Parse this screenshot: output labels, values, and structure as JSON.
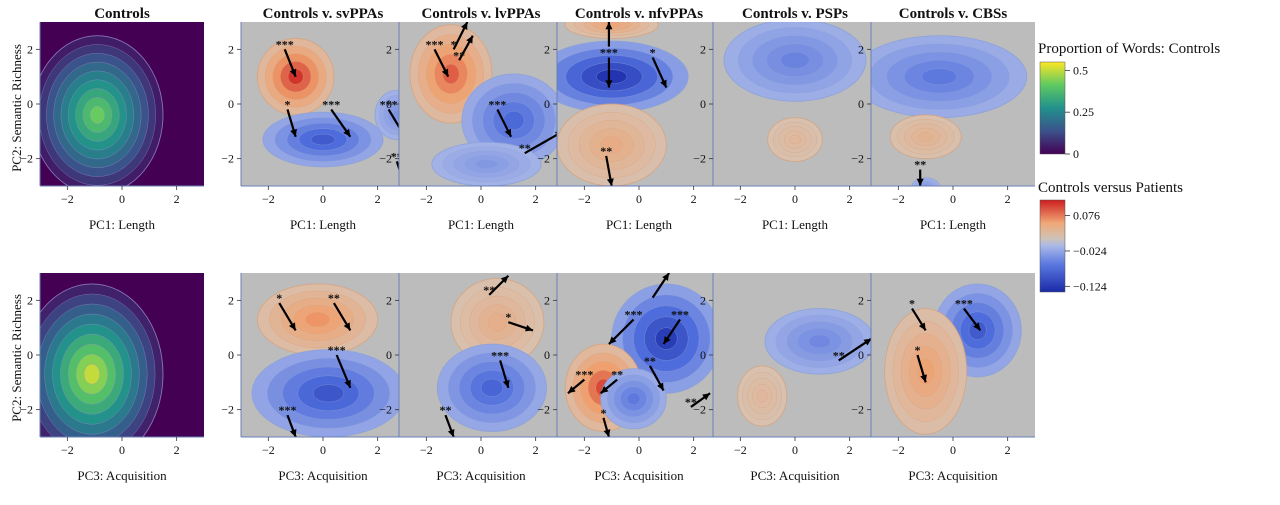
{
  "chart_data": {
    "type": "contour-grid",
    "column_titles": [
      "Controls",
      "Controls v. svPPAs",
      "Controls v. lvPPAs",
      "Controls v. nfvPPAs",
      "Controls v. PSPs",
      "Controls v. CBSs"
    ],
    "row_xlabels": [
      "PC1: Length",
      "PC3: Acquisition"
    ],
    "ylabel": "PC2: Semantic Richness",
    "xlim": [
      -3,
      3
    ],
    "ylim": [
      -3,
      3
    ],
    "xticks": [
      "−2",
      "0",
      "2"
    ],
    "yticks": [
      "2",
      "0",
      "−2"
    ],
    "legend_controls": {
      "title": "Proportion of Words: Controls",
      "ticks": [
        "0.5",
        "0.25",
        "0"
      ],
      "tick_values": [
        0.5,
        0.25,
        0
      ],
      "range": [
        0,
        0.55
      ]
    },
    "legend_diff": {
      "title": "Controls versus Patients",
      "ticks": [
        "0.076",
        "−0.024",
        "−0.124"
      ],
      "tick_values": [
        0.076,
        -0.024,
        -0.124
      ],
      "range": [
        -0.14,
        0.12
      ]
    },
    "panels": [
      [
        {
          "kind": "density",
          "blobs": [
            {
              "cx": -0.9,
              "cy": -0.4,
              "rx": 2.4,
              "ry": 2.9,
              "peak": 0.42
            }
          ]
        },
        {
          "kind": "diff",
          "blobs": [
            {
              "cx": -1.0,
              "cy": 1.0,
              "rx": 1.4,
              "ry": 1.4,
              "peak": 0.11
            },
            {
              "cx": 0.0,
              "cy": -1.3,
              "rx": 2.2,
              "ry": 1.0,
              "peak": -0.09
            },
            {
              "cx": 2.7,
              "cy": -0.4,
              "rx": 0.8,
              "ry": 0.9,
              "peak": -0.035
            }
          ],
          "arrows": [
            {
              "x1": -1.4,
              "y1": 2.0,
              "x2": -1.0,
              "y2": 1.0,
              "label": "***"
            },
            {
              "x1": -1.3,
              "y1": -0.2,
              "x2": -1.0,
              "y2": -1.2,
              "label": "*"
            },
            {
              "x1": 0.3,
              "y1": -0.2,
              "x2": 1.0,
              "y2": -1.2,
              "label": "***"
            },
            {
              "x1": 2.4,
              "y1": -0.2,
              "x2": 3.0,
              "y2": -1.2,
              "label": "***"
            },
            {
              "x1": 2.7,
              "y1": -2.1,
              "x2": 3.0,
              "y2": -3.0,
              "label": "**"
            }
          ]
        },
        {
          "kind": "diff",
          "blobs": [
            {
              "cx": -1.1,
              "cy": 1.1,
              "rx": 1.5,
              "ry": 1.8,
              "peak": 0.09
            },
            {
              "cx": 1.2,
              "cy": -0.6,
              "rx": 1.9,
              "ry": 1.7,
              "peak": -0.075
            },
            {
              "cx": 0.2,
              "cy": -2.2,
              "rx": 2.0,
              "ry": 0.8,
              "peak": -0.03
            }
          ],
          "arrows": [
            {
              "x1": -1.7,
              "y1": 2.0,
              "x2": -1.2,
              "y2": 1.0,
              "label": "***"
            },
            {
              "x1": -1.0,
              "y1": 2.0,
              "x2": -0.5,
              "y2": 3.0,
              "label": "*"
            },
            {
              "x1": -0.8,
              "y1": 1.6,
              "x2": -0.3,
              "y2": 2.5,
              "label": "**"
            },
            {
              "x1": 0.6,
              "y1": -0.2,
              "x2": 1.1,
              "y2": -1.2,
              "label": "***"
            },
            {
              "x1": 1.6,
              "y1": -1.8,
              "x2": 3.0,
              "y2": -1.0,
              "label": "**"
            }
          ]
        },
        {
          "kind": "diff",
          "blobs": [
            {
              "cx": -1.0,
              "cy": 1.0,
              "rx": 2.8,
              "ry": 1.3,
              "peak": -0.13
            },
            {
              "cx": -1.0,
              "cy": -1.5,
              "rx": 2.0,
              "ry": 1.5,
              "peak": 0.04
            },
            {
              "cx": -1.0,
              "cy": 2.9,
              "rx": 1.7,
              "ry": 0.5,
              "peak": 0.05
            }
          ],
          "arrows": [
            {
              "x1": -1.1,
              "y1": 2.1,
              "x2": -1.1,
              "y2": 3.0,
              "label": ""
            },
            {
              "x1": -1.1,
              "y1": 1.7,
              "x2": -1.1,
              "y2": 0.6,
              "label": "***"
            },
            {
              "x1": 0.5,
              "y1": 1.7,
              "x2": 1.0,
              "y2": 0.6,
              "label": "*"
            },
            {
              "x1": -1.2,
              "y1": -1.9,
              "x2": -1.0,
              "y2": -3.0,
              "label": "**"
            }
          ]
        },
        {
          "kind": "diff",
          "blobs": [
            {
              "cx": 0.0,
              "cy": 1.6,
              "rx": 2.6,
              "ry": 1.5,
              "peak": -0.05
            },
            {
              "cx": 0.0,
              "cy": -1.3,
              "rx": 1.0,
              "ry": 0.8,
              "peak": 0.02
            }
          ],
          "arrows": []
        },
        {
          "kind": "diff",
          "blobs": [
            {
              "cx": -0.5,
              "cy": 1.0,
              "rx": 3.2,
              "ry": 1.5,
              "peak": -0.06
            },
            {
              "cx": -1.0,
              "cy": -1.2,
              "rx": 1.3,
              "ry": 0.8,
              "peak": 0.03
            },
            {
              "cx": -1.0,
              "cy": -3.0,
              "rx": 0.5,
              "ry": 0.3,
              "peak": -0.03
            }
          ],
          "arrows": [
            {
              "x1": -1.2,
              "y1": -2.4,
              "x2": -1.2,
              "y2": -3.0,
              "label": "**"
            }
          ]
        }
      ],
      [
        {
          "kind": "density",
          "blobs": [
            {
              "cx": -1.1,
              "cy": -0.7,
              "rx": 2.6,
              "ry": 3.3,
              "peak": 0.5
            }
          ]
        },
        {
          "kind": "diff",
          "blobs": [
            {
              "cx": -0.2,
              "cy": 1.3,
              "rx": 2.2,
              "ry": 1.3,
              "peak": 0.065
            },
            {
              "cx": 0.2,
              "cy": -1.4,
              "rx": 2.8,
              "ry": 1.6,
              "peak": -0.095
            }
          ],
          "arrows": [
            {
              "x1": -1.6,
              "y1": 1.9,
              "x2": -1.0,
              "y2": 0.9,
              "label": "*"
            },
            {
              "x1": 0.4,
              "y1": 1.9,
              "x2": 1.0,
              "y2": 0.9,
              "label": "**"
            },
            {
              "x1": 0.5,
              "y1": 0.0,
              "x2": 1.0,
              "y2": -1.2,
              "label": "***"
            },
            {
              "x1": -1.3,
              "y1": -2.2,
              "x2": -1.0,
              "y2": -3.0,
              "label": "***"
            }
          ]
        },
        {
          "kind": "diff",
          "blobs": [
            {
              "cx": 0.6,
              "cy": 1.2,
              "rx": 1.7,
              "ry": 1.6,
              "peak": 0.035
            },
            {
              "cx": 0.4,
              "cy": -1.2,
              "rx": 2.0,
              "ry": 1.6,
              "peak": -0.08
            }
          ],
          "arrows": [
            {
              "x1": 0.3,
              "y1": 2.2,
              "x2": 1.0,
              "y2": 2.9,
              "label": "**"
            },
            {
              "x1": 1.0,
              "y1": 1.2,
              "x2": 1.9,
              "y2": 0.9,
              "label": "*"
            },
            {
              "x1": 0.7,
              "y1": -0.2,
              "x2": 1.0,
              "y2": -1.2,
              "label": "***"
            },
            {
              "x1": -1.3,
              "y1": -2.2,
              "x2": -1.0,
              "y2": -3.0,
              "label": "**"
            }
          ]
        },
        {
          "kind": "diff",
          "blobs": [
            {
              "cx": 1.0,
              "cy": 0.6,
              "rx": 2.0,
              "ry": 2.0,
              "peak": -0.12
            },
            {
              "cx": -1.3,
              "cy": -1.2,
              "rx": 1.4,
              "ry": 1.6,
              "peak": 0.1
            },
            {
              "cx": -0.2,
              "cy": -1.6,
              "rx": 1.2,
              "ry": 1.1,
              "peak": -0.06
            }
          ],
          "arrows": [
            {
              "x1": 0.5,
              "y1": 2.1,
              "x2": 1.1,
              "y2": 3.0,
              "label": ""
            },
            {
              "x1": -0.2,
              "y1": 1.3,
              "x2": -1.1,
              "y2": 0.4,
              "label": "***"
            },
            {
              "x1": 1.5,
              "y1": 1.3,
              "x2": 0.9,
              "y2": 0.4,
              "label": "***"
            },
            {
              "x1": 0.4,
              "y1": -0.4,
              "x2": 0.9,
              "y2": -1.3,
              "label": "**"
            },
            {
              "x1": -2.0,
              "y1": -0.9,
              "x2": -2.6,
              "y2": -1.4,
              "label": "***"
            },
            {
              "x1": -0.8,
              "y1": -0.9,
              "x2": -1.4,
              "y2": -1.4,
              "label": "**"
            },
            {
              "x1": -1.3,
              "y1": -2.3,
              "x2": -1.1,
              "y2": -3.0,
              "label": "*"
            },
            {
              "x1": 1.9,
              "y1": -1.9,
              "x2": 2.6,
              "y2": -1.4,
              "label": "**"
            }
          ]
        },
        {
          "kind": "diff",
          "blobs": [
            {
              "cx": 0.9,
              "cy": 0.5,
              "rx": 2.0,
              "ry": 1.2,
              "peak": -0.045
            },
            {
              "cx": -1.2,
              "cy": -1.5,
              "rx": 0.9,
              "ry": 1.1,
              "peak": 0.02
            }
          ],
          "arrows": [
            {
              "x1": 1.6,
              "y1": -0.2,
              "x2": 2.8,
              "y2": 0.6,
              "label": "**"
            }
          ]
        },
        {
          "kind": "diff",
          "blobs": [
            {
              "cx": 0.9,
              "cy": 0.9,
              "rx": 1.6,
              "ry": 1.7,
              "peak": -0.09
            },
            {
              "cx": -1.0,
              "cy": -0.6,
              "rx": 1.5,
              "ry": 2.3,
              "peak": 0.055
            }
          ],
          "arrows": [
            {
              "x1": -1.5,
              "y1": 1.7,
              "x2": -1.0,
              "y2": 0.9,
              "label": "*"
            },
            {
              "x1": 0.4,
              "y1": 1.7,
              "x2": 1.0,
              "y2": 0.9,
              "label": "***"
            },
            {
              "x1": -1.3,
              "y1": 0.0,
              "x2": -1.0,
              "y2": -1.0,
              "label": "*"
            }
          ]
        }
      ]
    ]
  }
}
